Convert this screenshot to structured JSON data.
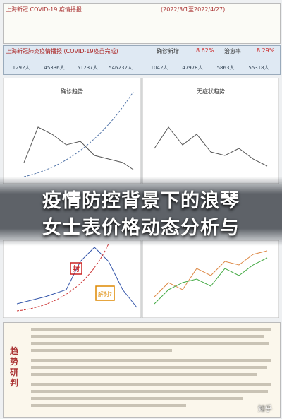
{
  "header": {
    "title": "上海新冠 COVID-19 疫情播报",
    "date": "(2022/3/1至2022/4/27)"
  },
  "stats": {
    "title": "上海新冠肺炎疫情播报 (COVID-19疫苗完成)",
    "rate_label": "确诊新增",
    "rate": "8.62%",
    "cure_label": "治愈率",
    "cure": "8.29%",
    "left": [
      "1292人",
      "45336人",
      "51237人",
      "546232人"
    ],
    "right": [
      "1042人",
      "47978人",
      "5863人",
      "55318人"
    ]
  },
  "charts": {
    "top_left": "确诊趋势",
    "top_right": "无症状趋势",
    "mark_lock": "封",
    "mark_unlock": "解封?"
  },
  "overlay": {
    "line1": "疫情防控背景下的浪琴",
    "line2": "女士表价格动态分析与"
  },
  "panel": {
    "side": "趋势研判"
  },
  "watermark": "知乎"
}
